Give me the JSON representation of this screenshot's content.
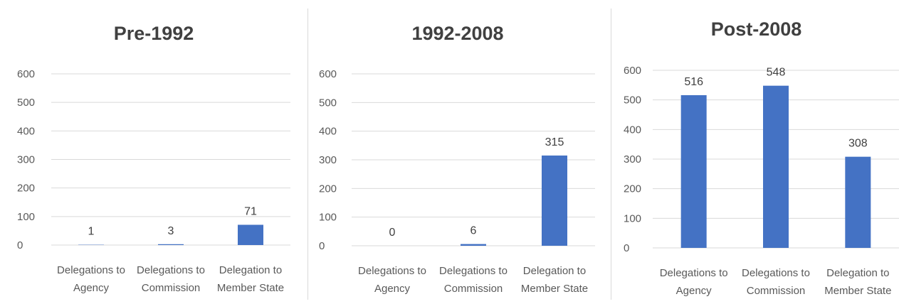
{
  "chart_data": [
    {
      "type": "bar",
      "title": "Pre-1992",
      "categories": [
        [
          "Delegations to",
          "Agency"
        ],
        [
          "Delegations to",
          "Commission"
        ],
        [
          "Delegation to",
          "Member State"
        ]
      ],
      "values": [
        1,
        3,
        71
      ],
      "ylim": [
        0,
        600
      ],
      "yticks": [
        0,
        100,
        200,
        300,
        400,
        500,
        600
      ],
      "grid": true,
      "color": "#4472c4"
    },
    {
      "type": "bar",
      "title": "1992-2008",
      "categories": [
        [
          "Delegations to",
          "Agency"
        ],
        [
          "Delegations to",
          "Commission"
        ],
        [
          "Delegation to",
          "Member State"
        ]
      ],
      "values": [
        0,
        6,
        315
      ],
      "ylim": [
        0,
        600
      ],
      "yticks": [
        0,
        100,
        200,
        300,
        400,
        500,
        600
      ],
      "grid": true,
      "color": "#4472c4"
    },
    {
      "type": "bar",
      "title": "Post-2008",
      "categories": [
        [
          "Delegations to",
          "Agency"
        ],
        [
          "Delegations to",
          "Commission"
        ],
        [
          "Delegation to",
          "Member State"
        ]
      ],
      "values": [
        516,
        548,
        308
      ],
      "ylim": [
        0,
        600
      ],
      "yticks": [
        0,
        100,
        200,
        300,
        400,
        500,
        600
      ],
      "grid": true,
      "color": "#4472c4"
    }
  ]
}
